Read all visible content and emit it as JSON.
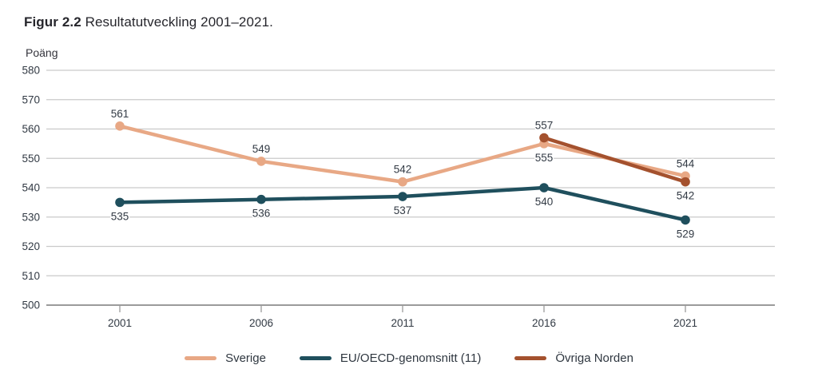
{
  "figure": {
    "title_bold": "Figur 2.2",
    "title_rest": " Resultatutveckling 2001–2021.",
    "y_axis_unit": "Poäng"
  },
  "chart_data": {
    "type": "line",
    "categories": [
      "2001",
      "2006",
      "2011",
      "2016",
      "2021"
    ],
    "series": [
      {
        "name": "Sverige",
        "color": "#e8a885",
        "values": [
          561,
          549,
          542,
          555,
          544
        ],
        "label_positions": [
          "above",
          "above",
          "above",
          "below",
          "above"
        ]
      },
      {
        "name": "EU/OECD-genomsnitt (11)",
        "color": "#1f4f5d",
        "values": [
          535,
          536,
          537,
          540,
          529
        ],
        "label_positions": [
          "below",
          "below",
          "below",
          "below",
          "below"
        ]
      },
      {
        "name": "Övriga Norden",
        "color": "#a4512e",
        "values": [
          null,
          null,
          null,
          557,
          542
        ],
        "label_positions": [
          null,
          null,
          null,
          "above",
          "below"
        ]
      }
    ],
    "ylabel": "Poäng",
    "ylim": [
      500,
      580
    ],
    "ytick_step": 10,
    "grid": true,
    "legend_position": "bottom"
  },
  "colors": {
    "grid": "#cacaca",
    "axis": "#9b9b9b",
    "label_text": "#323a44"
  }
}
